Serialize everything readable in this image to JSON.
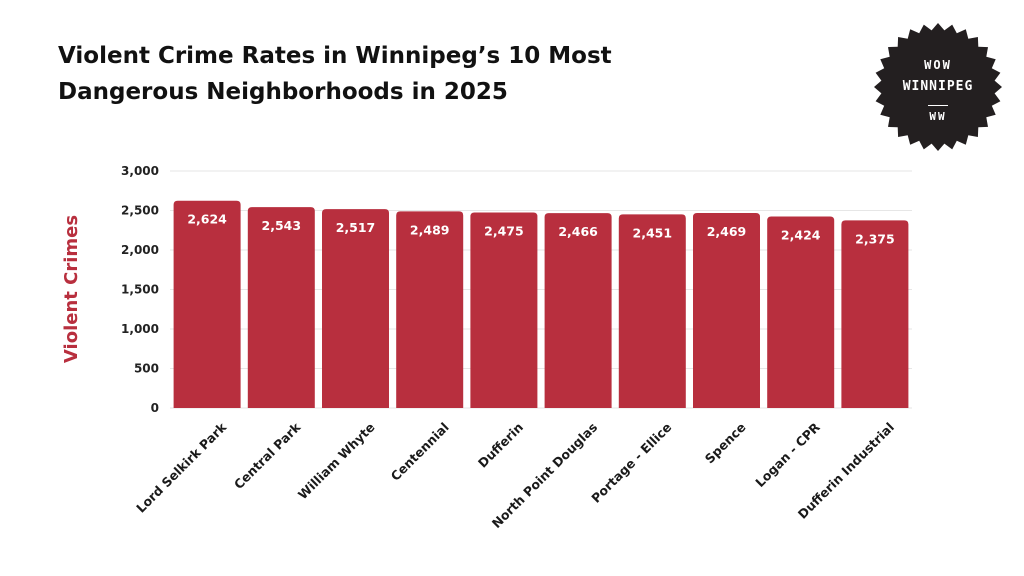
{
  "title_line1": "Violent Crime Rates in Winnipeg’s 10 Most",
  "title_line2": "Dangerous Neighborhoods in 2025",
  "badge": {
    "line1": "WOW",
    "line2": "WINNIPEG",
    "line3": "WW",
    "bg": "#231f20"
  },
  "colors": {
    "bar": "#b82f3e",
    "ylabel": "#b82f3e",
    "grid": "#e6e6e6"
  },
  "chart_data": {
    "type": "bar",
    "title": "Violent Crime Rates in Winnipeg’s 10 Most Dangerous Neighborhoods in 2025",
    "xlabel": "",
    "ylabel": "Violent Crimes",
    "ylim": [
      0,
      3000
    ],
    "yticks": [
      0,
      500,
      1000,
      1500,
      2000,
      2500,
      3000
    ],
    "ytick_labels": [
      "0",
      "500",
      "1,000",
      "1,500",
      "2,000",
      "2,500",
      "3,000"
    ],
    "categories": [
      "Lord Selkirk Park",
      "Central Park",
      "William Whyte",
      "Centennial",
      "Dufferin",
      "North Point Douglas",
      "Portage - Ellice",
      "Spence",
      "Logan - CPR",
      "Dufferin Industrial"
    ],
    "values": [
      2624,
      2543,
      2517,
      2489,
      2475,
      2466,
      2451,
      2469,
      2424,
      2375
    ],
    "value_labels": [
      "2,624",
      "2,543",
      "2,517",
      "2,489",
      "2,475",
      "2,466",
      "2,451",
      "2,469",
      "2,424",
      "2,375"
    ],
    "grid": true,
    "legend": "none"
  }
}
